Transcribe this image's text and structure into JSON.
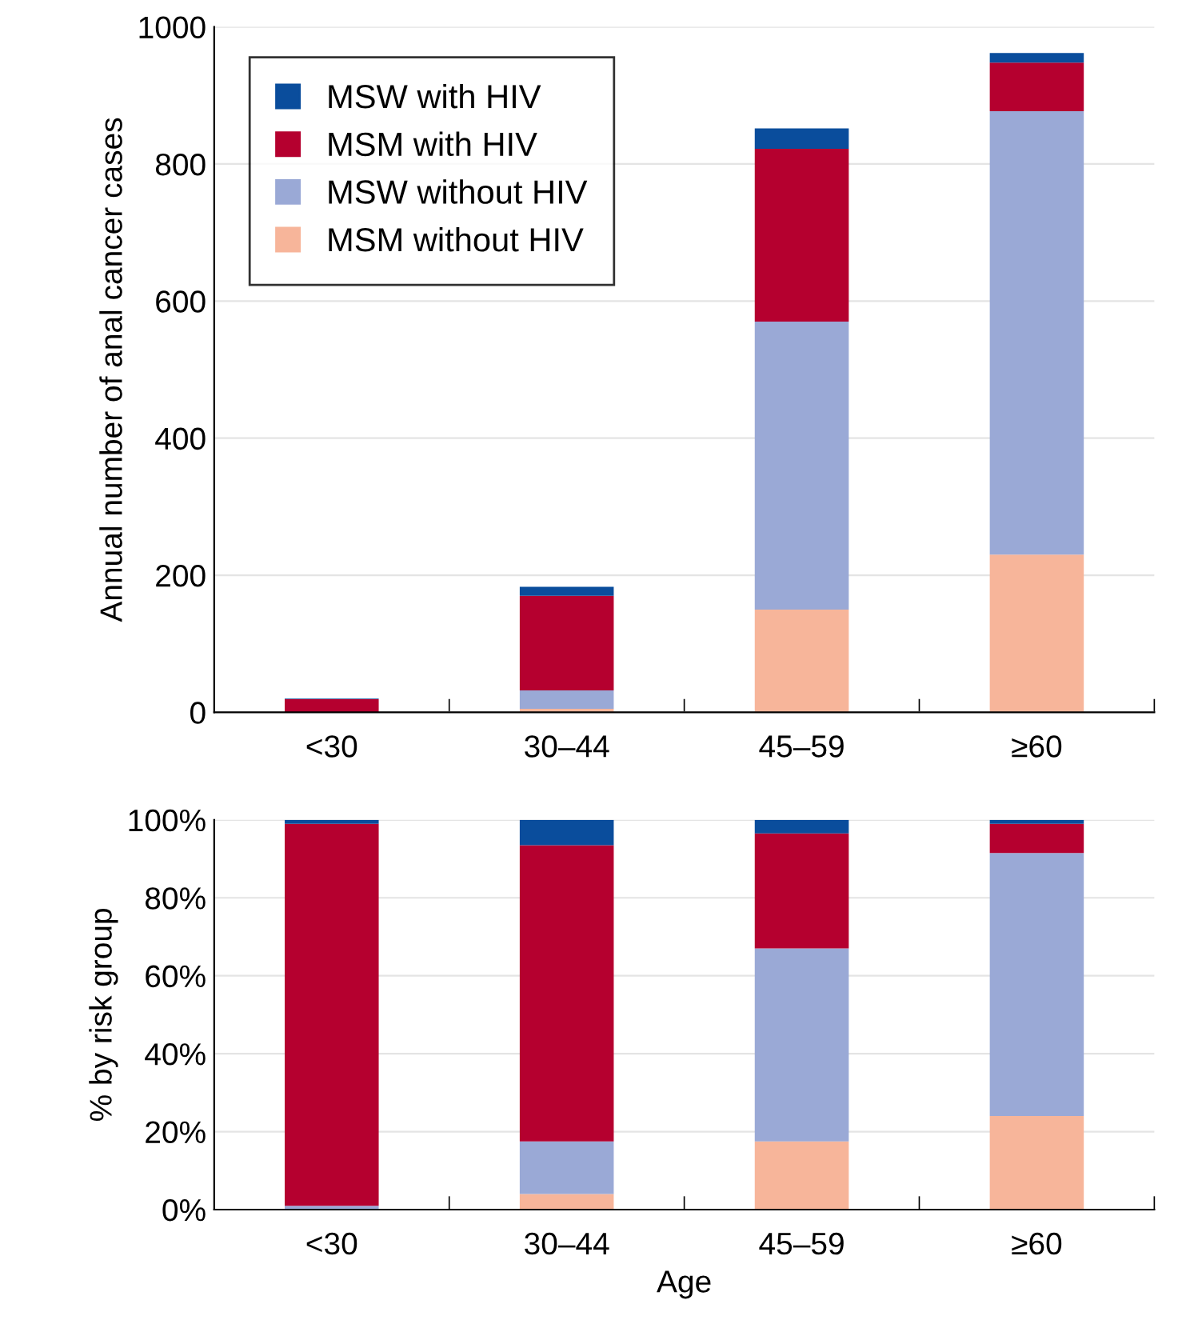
{
  "chart_data": [
    {
      "type": "bar",
      "stacked": true,
      "ylabel": "Annual number of anal cancer cases",
      "categories": [
        "<30",
        "30–44",
        "45–59",
        "≥60"
      ],
      "series": [
        {
          "name": "MSM without HIV",
          "color": "#f7b59a",
          "values": [
            0,
            5,
            150,
            230
          ]
        },
        {
          "name": "MSW without HIV",
          "color": "#9aa9d6",
          "values": [
            0,
            27,
            420,
            647
          ]
        },
        {
          "name": "MSM with HIV",
          "color": "#b5002f",
          "values": [
            19,
            138,
            252,
            71
          ]
        },
        {
          "name": "MSW with HIV",
          "color": "#0a4d9c",
          "values": [
            1,
            13,
            30,
            14
          ]
        }
      ],
      "ylim": [
        0,
        1000
      ],
      "yticks": [
        0,
        200,
        400,
        600,
        800,
        1000
      ],
      "grid": "y",
      "legend": "top left"
    },
    {
      "type": "bar",
      "stacked": true,
      "ylabel": "% by risk group",
      "xlabel": "Age",
      "categories": [
        "<30",
        "30–44",
        "45–59",
        "≥60"
      ],
      "series": [
        {
          "color": "#f7b59a",
          "values": [
            0,
            4,
            17.5,
            24
          ]
        },
        {
          "color": "#9aa9d6",
          "values": [
            1,
            13.5,
            49.5,
            67.5
          ]
        },
        {
          "color": "#b5002f",
          "values": [
            98,
            76,
            29.5,
            7.5
          ]
        },
        {
          "color": "#0a4d9c",
          "values": [
            1,
            6.5,
            3.5,
            1
          ]
        }
      ],
      "ylim": [
        0,
        100
      ],
      "yticks": [
        {
          "value": 0,
          "label": "0%"
        },
        {
          "value": 20,
          "label": "20%"
        },
        {
          "value": 40,
          "label": "40%"
        },
        {
          "value": 60,
          "label": "60%"
        },
        {
          "value": 80,
          "label": "80%"
        },
        {
          "value": 100,
          "label": "100%"
        }
      ],
      "grid": "y"
    }
  ]
}
